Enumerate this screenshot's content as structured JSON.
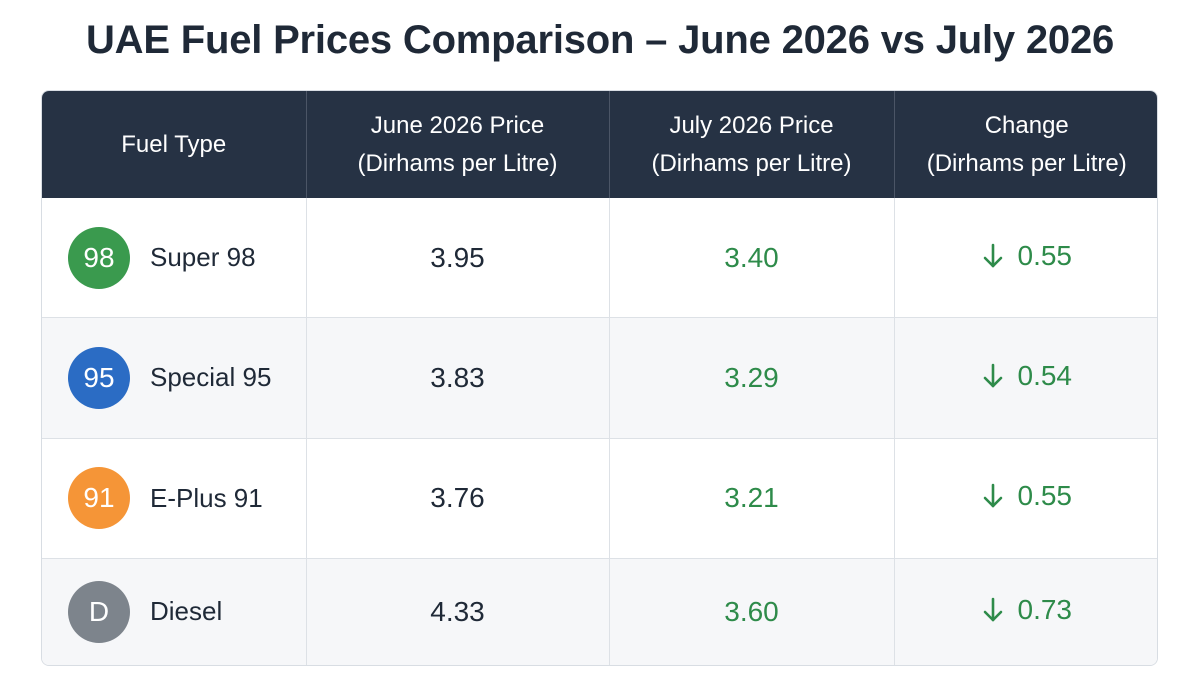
{
  "title": "UAE Fuel Prices Comparison – June 2026 vs July 2026",
  "colors": {
    "header_bg": "#263244",
    "decrease_green": "#2e8b4a",
    "badge_super98": "#3a9a4e",
    "badge_special95": "#2b6cc4",
    "badge_eplus91": "#f59537",
    "badge_diesel": "#7d848c"
  },
  "chart_data": {
    "type": "table",
    "columns": [
      {
        "line1": "Fuel Type",
        "line2": ""
      },
      {
        "line1": "June 2026 Price",
        "line2": "(Dirhams per Litre)"
      },
      {
        "line1": "July 2026 Price",
        "line2": "(Dirhams per Litre)"
      },
      {
        "line1": "Change",
        "line2": "(Dirhams per Litre)"
      }
    ],
    "rows": [
      {
        "badge": "98",
        "badge_color": "#3a9a4e",
        "fuel": "Super 98",
        "june": "3.95",
        "july": "3.40",
        "change": "0.55",
        "direction": "down"
      },
      {
        "badge": "95",
        "badge_color": "#2b6cc4",
        "fuel": "Special 95",
        "june": "3.83",
        "july": "3.29",
        "change": "0.54",
        "direction": "down"
      },
      {
        "badge": "91",
        "badge_color": "#f59537",
        "fuel": "E-Plus 91",
        "june": "3.76",
        "july": "3.21",
        "change": "0.55",
        "direction": "down"
      },
      {
        "badge": "D",
        "badge_color": "#7d848c",
        "fuel": "Diesel",
        "june": "4.33",
        "july": "3.60",
        "change": "0.73",
        "direction": "down"
      }
    ]
  }
}
